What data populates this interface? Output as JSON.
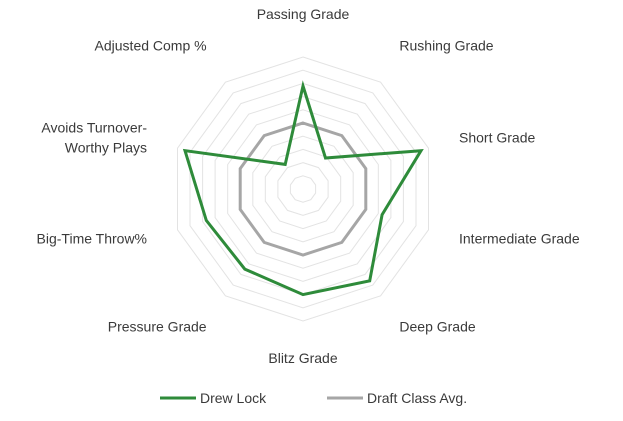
{
  "chart_data": {
    "type": "radar",
    "axes": [
      "Passing Grade",
      "Rushing Grade",
      "Short Grade",
      "Intermediate Grade",
      "Deep Grade",
      "Blitz Grade",
      "Pressure Grade",
      "Big-Time Throw%",
      "Avoids Turnover-Worthy Plays",
      "Adjusted Comp %"
    ],
    "axis_label_lines": [
      [
        "Passing Grade"
      ],
      [
        "Rushing Grade"
      ],
      [
        "Short Grade"
      ],
      [
        "Intermediate Grade"
      ],
      [
        "Deep Grade"
      ],
      [
        "Blitz Grade"
      ],
      [
        "Pressure Grade"
      ],
      [
        "Big-Time Throw%"
      ],
      [
        "Avoids Turnover-",
        "Worthy Plays"
      ],
      [
        "Adjusted Comp %"
      ]
    ],
    "rlim": [
      0,
      10
    ],
    "grid_levels": 10,
    "series": [
      {
        "name": "Drew Lock",
        "color": "#2e8b3a",
        "values": [
          7.8,
          2.9,
          9.4,
          6.3,
          8.6,
          8.0,
          7.5,
          7.7,
          9.4,
          2.3
        ]
      },
      {
        "name": "Draft Class Avg.",
        "color": "#a6a6a6",
        "values": [
          5.0,
          5.0,
          5.0,
          5.0,
          5.0,
          5.0,
          5.0,
          5.0,
          5.0,
          5.0
        ]
      }
    ],
    "legend": "bottom"
  }
}
